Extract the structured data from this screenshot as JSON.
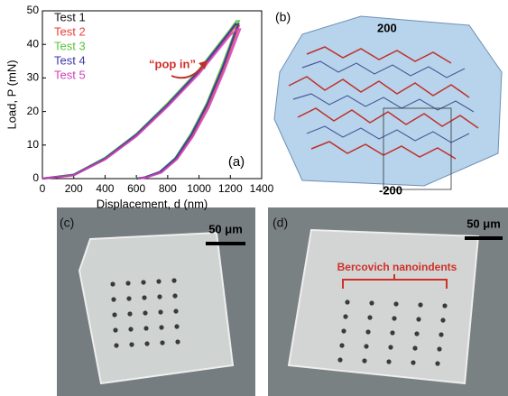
{
  "chart_data": {
    "type": "line",
    "xlabel": "Displacement, d (nm)",
    "ylabel": "Load, P (mN)",
    "annotation": "“pop in”",
    "panel_label": "(a)",
    "xlim": [
      0,
      1400
    ],
    "xticks": [
      0,
      200,
      400,
      600,
      800,
      1000,
      1200,
      1400
    ],
    "ylim": [
      0,
      50
    ],
    "yticks": [
      0,
      10,
      20,
      30,
      40,
      50
    ],
    "legend": "upper left",
    "series": [
      {
        "name": "Test 1",
        "color": "#111111",
        "x": [
          0,
          200,
          400,
          600,
          800,
          1000,
          1200,
          1230,
          1250,
          1150,
          1050,
          950,
          850,
          750,
          650,
          600
        ],
        "values": [
          0,
          1.1,
          6,
          13,
          22,
          32,
          44,
          46,
          46,
          33,
          22,
          13,
          6,
          2,
          0.3,
          0
        ]
      },
      {
        "name": "Test 2",
        "color": "#e8403a",
        "x": [
          0,
          200,
          400,
          600,
          800,
          1000,
          1200,
          1235,
          1255,
          1155,
          1055,
          955,
          855,
          755,
          655,
          605
        ],
        "values": [
          0,
          1.0,
          5.8,
          12.8,
          21.8,
          31.8,
          43.5,
          45.5,
          45.5,
          32.5,
          21.5,
          12.5,
          5.8,
          1.8,
          0.3,
          0
        ]
      },
      {
        "name": "Test 3",
        "color": "#5cc23c",
        "x": [
          0,
          200,
          400,
          600,
          800,
          1000,
          1200,
          1240,
          1255,
          1150,
          1050,
          950,
          850,
          750,
          650,
          590
        ],
        "values": [
          0,
          1.2,
          6.2,
          13.3,
          22.5,
          32.5,
          44.5,
          47,
          47,
          34,
          22.5,
          13.5,
          6.2,
          2,
          0.3,
          0
        ]
      },
      {
        "name": "Test 4",
        "color": "#3a3aa8",
        "x": [
          0,
          200,
          400,
          600,
          800,
          1000,
          1200,
          1232,
          1250,
          1150,
          1050,
          950,
          850,
          750,
          650,
          600
        ],
        "values": [
          0,
          1.1,
          6,
          13.1,
          22.1,
          32.1,
          44,
          46,
          46,
          33,
          22,
          13,
          6,
          2,
          0.3,
          0
        ]
      },
      {
        "name": "Test 5",
        "color": "#d040b8",
        "x": [
          0,
          200,
          400,
          600,
          800,
          1000,
          1200,
          1245,
          1262,
          1160,
          1060,
          960,
          860,
          760,
          660,
          610
        ],
        "values": [
          0,
          1.0,
          5.7,
          12.6,
          21.5,
          31.3,
          42.8,
          44.5,
          44.5,
          32,
          21,
          12.5,
          5.8,
          1.8,
          0.3,
          0
        ]
      }
    ]
  },
  "panel_b": {
    "label": "(b)",
    "top_label": "200",
    "bottom_label": "-200"
  },
  "panel_c": {
    "label": "(c)",
    "scale_bar": "50 μm"
  },
  "panel_d": {
    "label": "(d)",
    "scale_bar": "50 μm",
    "annotation": "Bercovich nanoindents"
  }
}
